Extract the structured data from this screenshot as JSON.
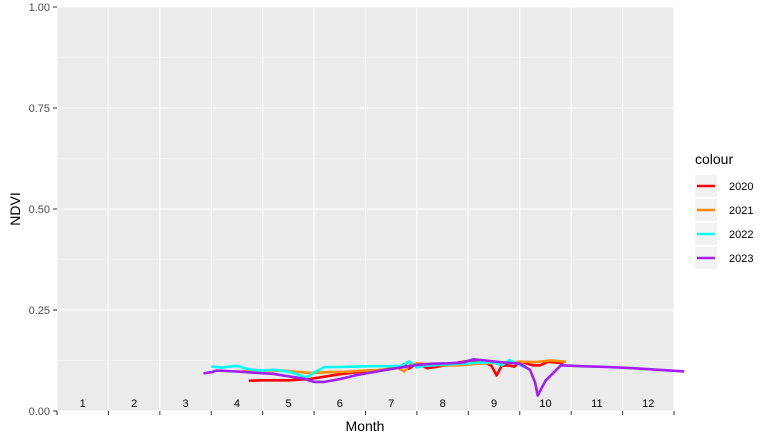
{
  "chart_data": {
    "type": "line",
    "title": "",
    "xlabel": "Month",
    "ylabel": "NDVI",
    "xlim": [
      0,
      12
    ],
    "ylim": [
      0,
      1
    ],
    "grid": true,
    "legend_position": "right",
    "legend_title": "colour",
    "x_tick_labels": [
      "1",
      "2",
      "3",
      "4",
      "5",
      "6",
      "7",
      "8",
      "9",
      "10",
      "11",
      "12"
    ],
    "y_tick_labels": [
      "0.00",
      "0.25",
      "0.50",
      "0.75",
      "1.00"
    ],
    "y_ticks": [
      0,
      0.25,
      0.5,
      0.75,
      1
    ],
    "series": [
      {
        "name": "2020",
        "color": "#FF0000",
        "x": [
          3.73,
          4.0,
          4.5,
          4.9,
          5.2,
          5.5,
          5.9,
          6.25,
          6.45,
          6.55,
          6.65,
          6.75,
          6.85,
          7.0,
          7.2,
          7.4,
          7.6,
          7.8,
          8.0,
          8.3,
          8.45,
          8.55,
          8.65,
          8.75,
          8.9,
          9.0,
          9.1,
          9.25,
          9.4,
          9.55,
          9.7,
          9.85
        ],
        "y": [
          0.075,
          0.076,
          0.076,
          0.079,
          0.085,
          0.091,
          0.097,
          0.101,
          0.104,
          0.112,
          0.108,
          0.116,
          0.105,
          0.118,
          0.106,
          0.11,
          0.114,
          0.12,
          0.124,
          0.121,
          0.112,
          0.088,
          0.112,
          0.113,
          0.11,
          0.122,
          0.119,
          0.113,
          0.113,
          0.122,
          0.12,
          0.118
        ]
      },
      {
        "name": "2021",
        "color": "#FF8C00",
        "x": [
          3.6,
          3.85,
          4.1,
          4.4,
          4.65,
          4.95,
          5.25,
          5.6,
          6.0,
          6.35,
          6.6,
          6.75,
          6.85,
          7.0,
          7.2,
          7.5,
          7.8,
          8.0,
          8.2,
          8.5,
          8.8,
          9.0,
          9.3,
          9.6,
          9.9
        ],
        "y": [
          0.098,
          0.098,
          0.099,
          0.1,
          0.097,
          0.094,
          0.096,
          0.097,
          0.1,
          0.102,
          0.109,
          0.098,
          0.113,
          0.118,
          0.116,
          0.113,
          0.113,
          0.115,
          0.117,
          0.119,
          0.12,
          0.122,
          0.121,
          0.125,
          0.122
        ]
      },
      {
        "name": "2022",
        "color": "#00FFFF",
        "x": [
          3.0,
          3.2,
          3.5,
          3.7,
          3.95,
          4.25,
          4.55,
          4.85,
          5.0,
          5.2,
          5.5,
          5.8,
          6.1,
          6.4,
          6.7,
          6.85,
          7.0,
          7.15,
          7.3,
          7.55,
          7.9,
          8.2,
          8.5,
          8.65,
          8.8,
          8.95,
          9.1
        ],
        "y": [
          0.11,
          0.108,
          0.112,
          0.104,
          0.1,
          0.102,
          0.096,
          0.083,
          0.095,
          0.109,
          0.109,
          0.11,
          0.111,
          0.111,
          0.112,
          0.123,
          0.108,
          0.112,
          0.113,
          0.115,
          0.117,
          0.12,
          0.12,
          0.113,
          0.126,
          0.117,
          0.108
        ]
      },
      {
        "name": "2023",
        "color": "#A020F0",
        "x": [
          2.85,
          3.0,
          3.1,
          3.3,
          3.6,
          3.9,
          4.2,
          4.5,
          4.8,
          5.0,
          5.2,
          5.5,
          5.8,
          6.1,
          6.4,
          6.7,
          7.0,
          7.3,
          7.6,
          7.9,
          8.1,
          8.4,
          8.7,
          9.0,
          9.2,
          9.3,
          9.35,
          9.5,
          9.8,
          10.2,
          10.7,
          11.2,
          11.7,
          12.2
        ],
        "y": [
          0.093,
          0.096,
          0.1,
          0.099,
          0.097,
          0.094,
          0.092,
          0.086,
          0.08,
          0.072,
          0.072,
          0.079,
          0.088,
          0.095,
          0.102,
          0.108,
          0.114,
          0.117,
          0.118,
          0.12,
          0.128,
          0.124,
          0.12,
          0.117,
          0.102,
          0.07,
          0.038,
          0.075,
          0.113,
          0.111,
          0.109,
          0.106,
          0.102,
          0.098
        ]
      }
    ]
  }
}
